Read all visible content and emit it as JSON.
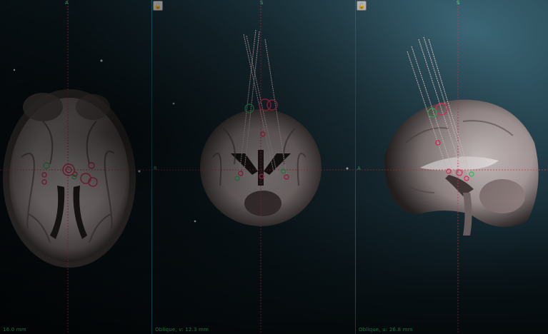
{
  "viewers": {
    "axial": {
      "top_label": "A",
      "caption": "16.0 mm"
    },
    "coronal": {
      "top_label": "S",
      "side_label": "R",
      "caption": "Oblique, v: 12.3 mm"
    },
    "sagittal": {
      "top_label": "S",
      "side_label": "A",
      "caption": "Oblique, u: 26.8 mm"
    }
  },
  "colors": {
    "crosshair": "#e0364a",
    "contact_red": "#ff3b6a",
    "contact_green": "#2fd86a",
    "label_green": "#3fe08a",
    "panel_border": "#1e7a8a"
  },
  "icons": [
    "lock-icon"
  ]
}
